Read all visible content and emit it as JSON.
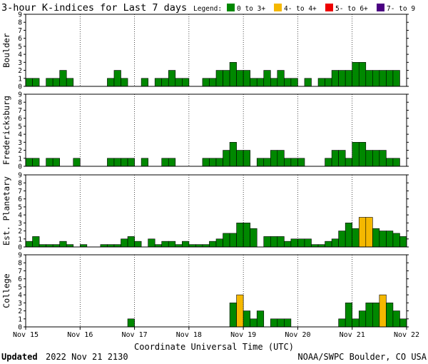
{
  "title": "3-hour K-indices for Last 7 days",
  "legend": {
    "label": "Legend:",
    "items": [
      {
        "label": "0 to 3+",
        "color": "#008800"
      },
      {
        "label": "4- to 4+",
        "color": "#f5b800"
      },
      {
        "label": "5- to 6+",
        "color": "#ee0000"
      },
      {
        "label": "7- to 9",
        "color": "#4b0082"
      }
    ]
  },
  "xlabel": "Coordinate Universal Time (UTC)",
  "footer": {
    "updated_label": "Updated",
    "updated_value": "2022 Nov 21 2130",
    "source": "NOAA/SWPC Boulder, CO USA"
  },
  "chart_data": {
    "type": "bar",
    "x_tick_labels": [
      "Nov 15",
      "Nov 16",
      "Nov 17",
      "Nov 18",
      "Nov 19",
      "Nov 20",
      "Nov 21",
      "Nov 22"
    ],
    "ylim": [
      0,
      9
    ],
    "y_ticks": [
      0,
      1,
      2,
      3,
      4,
      5,
      6,
      7,
      8,
      9
    ],
    "bins_per_day": 8,
    "grid": "vertical dotted at day boundaries",
    "panels": [
      {
        "name": "Boulder",
        "values": [
          1,
          1,
          0,
          1,
          1,
          2,
          1,
          0,
          0,
          0,
          0,
          0,
          1,
          2,
          1,
          0,
          0,
          1,
          0,
          1,
          1,
          2,
          1,
          1,
          0,
          0,
          1,
          1,
          2,
          2,
          3,
          2,
          2,
          1,
          1,
          2,
          1,
          2,
          1,
          1,
          0,
          1,
          0,
          1,
          1,
          2,
          2,
          2,
          3,
          3,
          2,
          2,
          2,
          2,
          2,
          0
        ]
      },
      {
        "name": "Fredericksburg",
        "values": [
          1,
          1,
          0,
          1,
          1,
          0,
          0,
          1,
          0,
          0,
          0,
          0,
          1,
          1,
          1,
          1,
          0,
          1,
          0,
          0,
          1,
          1,
          0,
          0,
          0,
          0,
          1,
          1,
          1,
          2,
          3,
          2,
          2,
          0,
          1,
          1,
          2,
          2,
          1,
          1,
          1,
          0,
          0,
          0,
          1,
          2,
          2,
          1,
          3,
          3,
          2,
          2,
          2,
          1,
          1,
          0
        ]
      },
      {
        "name": "Est. Planetary",
        "values": [
          0.7,
          1.3,
          0.3,
          0.3,
          0.3,
          0.7,
          0.3,
          0,
          0.3,
          0,
          0,
          0.3,
          0.3,
          0.3,
          1,
          1.3,
          0.7,
          0,
          1,
          0.3,
          0.7,
          0.7,
          0.3,
          0.7,
          0.3,
          0.3,
          0.3,
          0.7,
          1,
          1.7,
          1.7,
          3,
          3,
          2.3,
          0,
          1.3,
          1.3,
          1.3,
          0.7,
          1,
          1,
          1,
          0.3,
          0.3,
          0.7,
          1,
          2,
          3,
          2.3,
          3.7,
          3.7,
          2.3,
          2,
          2,
          1.7,
          1.3
        ]
      },
      {
        "name": "College",
        "values": [
          0,
          0,
          0,
          0,
          0,
          0,
          0,
          0,
          0,
          0,
          0,
          0,
          0,
          0,
          0,
          1,
          0,
          0,
          0,
          0,
          0,
          0,
          0,
          0,
          0,
          0,
          0,
          0,
          0,
          0,
          3,
          4,
          2,
          1,
          2,
          0,
          1,
          1,
          1,
          0,
          0,
          0,
          0,
          0,
          0,
          0,
          1,
          3,
          1,
          2,
          3,
          3,
          4,
          3,
          2,
          1
        ]
      }
    ]
  }
}
